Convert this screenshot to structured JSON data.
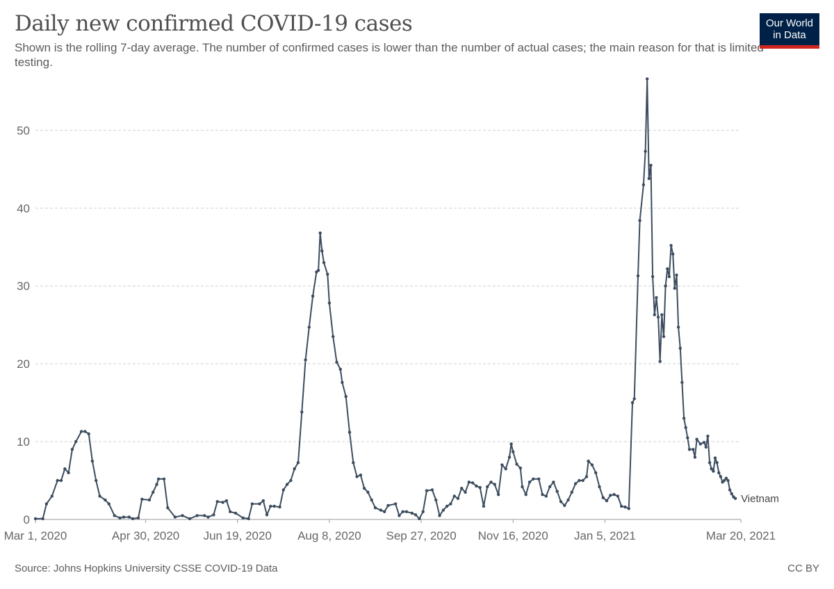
{
  "header": {
    "title": "Daily new confirmed COVID-19 cases",
    "subtitle": "Shown is the rolling 7-day average. The number of confirmed cases is lower than the number of actual cases; the main reason for that is limited testing."
  },
  "logo": {
    "line1": "Our World",
    "line2": "in Data"
  },
  "footer": {
    "source": "Source: Johns Hopkins University CSSE COVID-19 Data",
    "license": "CC BY"
  },
  "colors": {
    "series": "#3c4c5e",
    "grid": "#d0d0d0",
    "axis_text": "#666666",
    "logo_bg": "#002147",
    "logo_accent": "#ce261e"
  },
  "chart_data": {
    "type": "line",
    "title": "Daily new confirmed COVID-19 cases",
    "xlabel": "",
    "ylabel": "",
    "ylim": [
      0,
      57
    ],
    "yticks": [
      0,
      10,
      20,
      30,
      40,
      50
    ],
    "grid": true,
    "x_ticks": [
      {
        "day": 0,
        "label": "Mar 1, 2020"
      },
      {
        "day": 60,
        "label": "Apr 30, 2020"
      },
      {
        "day": 110,
        "label": "Jun 19, 2020"
      },
      {
        "day": 160,
        "label": "Aug 8, 2020"
      },
      {
        "day": 210,
        "label": "Sep 27, 2020"
      },
      {
        "day": 260,
        "label": "Nov 16, 2020"
      },
      {
        "day": 310,
        "label": "Jan 5, 2021"
      },
      {
        "day": 384,
        "label": "Mar 20, 2021"
      }
    ],
    "series": [
      {
        "name": "Vietnam",
        "points": [
          [
            0,
            0.1
          ],
          [
            4,
            0.1
          ],
          [
            6,
            2
          ],
          [
            9,
            3
          ],
          [
            12,
            5
          ],
          [
            14,
            5
          ],
          [
            16,
            6.5
          ],
          [
            18,
            6
          ],
          [
            20,
            9
          ],
          [
            22,
            10
          ],
          [
            25,
            11.3
          ],
          [
            27,
            11.3
          ],
          [
            29,
            11
          ],
          [
            31,
            7.5
          ],
          [
            33,
            5
          ],
          [
            35,
            3
          ],
          [
            38,
            2.5
          ],
          [
            40,
            2
          ],
          [
            43,
            0.5
          ],
          [
            46,
            0.2
          ],
          [
            48,
            0.3
          ],
          [
            51,
            0.3
          ],
          [
            53,
            0.1
          ],
          [
            56,
            0.2
          ],
          [
            58,
            2.6
          ],
          [
            62,
            2.5
          ],
          [
            64,
            3.5
          ],
          [
            66,
            4.5
          ],
          [
            67,
            5.2
          ],
          [
            70,
            5.2
          ],
          [
            72,
            1.5
          ],
          [
            76,
            0.3
          ],
          [
            80,
            0.5
          ],
          [
            84,
            0.1
          ],
          [
            88,
            0.5
          ],
          [
            92,
            0.5
          ],
          [
            94,
            0.3
          ],
          [
            97,
            0.6
          ],
          [
            99,
            2.3
          ],
          [
            102,
            2.2
          ],
          [
            104,
            2.4
          ],
          [
            106,
            1
          ],
          [
            109,
            0.8
          ],
          [
            113,
            0.2
          ],
          [
            116,
            0.1
          ],
          [
            118,
            2
          ],
          [
            122,
            2
          ],
          [
            124,
            2.4
          ],
          [
            126,
            0.6
          ],
          [
            128,
            1.7
          ],
          [
            130,
            1.7
          ],
          [
            133,
            1.6
          ],
          [
            135,
            3.8
          ],
          [
            137,
            4.5
          ],
          [
            139,
            5
          ],
          [
            141,
            6.5
          ],
          [
            143,
            7.3
          ],
          [
            145,
            13.8
          ],
          [
            147,
            20.5
          ],
          [
            149,
            24.7
          ],
          [
            151,
            28.7
          ],
          [
            153,
            31.8
          ],
          [
            154,
            32
          ],
          [
            155,
            36.8
          ],
          [
            156,
            34.5
          ],
          [
            157,
            33
          ],
          [
            159,
            31.5
          ],
          [
            160,
            27.8
          ],
          [
            162,
            23.5
          ],
          [
            164,
            20.2
          ],
          [
            166,
            19.3
          ],
          [
            167,
            17.6
          ],
          [
            169,
            15.8
          ],
          [
            171,
            11.2
          ],
          [
            173,
            7.3
          ],
          [
            175,
            5.5
          ],
          [
            177,
            5.7
          ],
          [
            179,
            4
          ],
          [
            181,
            3.5
          ],
          [
            183,
            2.5
          ],
          [
            185,
            1.5
          ],
          [
            188,
            1.2
          ],
          [
            190,
            1
          ],
          [
            192,
            1.8
          ],
          [
            196,
            2
          ],
          [
            198,
            0.5
          ],
          [
            200,
            1
          ],
          [
            202,
            1
          ],
          [
            205,
            0.8
          ],
          [
            207,
            0.6
          ],
          [
            209,
            0.1
          ],
          [
            211,
            1
          ],
          [
            213,
            3.7
          ],
          [
            216,
            3.8
          ],
          [
            218,
            2.5
          ],
          [
            220,
            0.5
          ],
          [
            222,
            1.2
          ],
          [
            224,
            1.7
          ],
          [
            226,
            2
          ],
          [
            228,
            3
          ],
          [
            230,
            2.7
          ],
          [
            232,
            4
          ],
          [
            234,
            3.5
          ],
          [
            236,
            4.8
          ],
          [
            238,
            4.7
          ],
          [
            240,
            4.3
          ],
          [
            242,
            4.1
          ],
          [
            244,
            1.7
          ],
          [
            246,
            4.2
          ],
          [
            248,
            4.8
          ],
          [
            250,
            4.5
          ],
          [
            252,
            3.2
          ],
          [
            254,
            7
          ],
          [
            256,
            6.5
          ],
          [
            258,
            8
          ],
          [
            259,
            9.7
          ],
          [
            260,
            8.7
          ],
          [
            262,
            7.1
          ],
          [
            264,
            6.6
          ],
          [
            265,
            4.2
          ],
          [
            267,
            3.2
          ],
          [
            269,
            4.8
          ],
          [
            271,
            5.2
          ],
          [
            274,
            5.2
          ],
          [
            276,
            3.2
          ],
          [
            278,
            3
          ],
          [
            280,
            4.2
          ],
          [
            282,
            4.8
          ],
          [
            284,
            3.6
          ],
          [
            286,
            2.3
          ],
          [
            288,
            1.8
          ],
          [
            290,
            2.5
          ],
          [
            292,
            3.5
          ],
          [
            294,
            4.6
          ],
          [
            296,
            5
          ],
          [
            298,
            5
          ],
          [
            300,
            5.5
          ],
          [
            301,
            7.5
          ],
          [
            303,
            7
          ],
          [
            305,
            6
          ],
          [
            307,
            4.2
          ],
          [
            309,
            2.8
          ],
          [
            311,
            2.4
          ],
          [
            313,
            3.1
          ],
          [
            315,
            3.2
          ],
          [
            317,
            3
          ],
          [
            319,
            1.7
          ],
          [
            321,
            1.6
          ],
          [
            323,
            1.4
          ],
          [
            325,
            15
          ],
          [
            326,
            15.5
          ],
          [
            328,
            31.3
          ],
          [
            329,
            38.4
          ],
          [
            331,
            43
          ],
          [
            332,
            47.3
          ],
          [
            333,
            56.6
          ],
          [
            334,
            43.8
          ],
          [
            335,
            45.5
          ],
          [
            336,
            31.2
          ],
          [
            337,
            26.3
          ],
          [
            338,
            28.5
          ],
          [
            339,
            26
          ],
          [
            340,
            20.3
          ],
          [
            341,
            26.3
          ],
          [
            342,
            23.5
          ],
          [
            343,
            30
          ],
          [
            344,
            32.2
          ],
          [
            345,
            31.2
          ],
          [
            346,
            35.2
          ],
          [
            347,
            34.1
          ],
          [
            348,
            29.7
          ],
          [
            349,
            31.4
          ],
          [
            350,
            24.7
          ],
          [
            351,
            22
          ],
          [
            352,
            17.6
          ],
          [
            353,
            13
          ],
          [
            354,
            11.8
          ],
          [
            355,
            10.5
          ],
          [
            356,
            9
          ],
          [
            358,
            9
          ],
          [
            359,
            8
          ],
          [
            360,
            10.3
          ],
          [
            362,
            9.7
          ],
          [
            364,
            9.9
          ],
          [
            365,
            9.3
          ],
          [
            366,
            10.7
          ],
          [
            367,
            7.3
          ],
          [
            368,
            6.5
          ],
          [
            369,
            6.2
          ],
          [
            370,
            7.9
          ],
          [
            371,
            7.3
          ],
          [
            372,
            6
          ],
          [
            373,
            5.5
          ],
          [
            374,
            4.8
          ],
          [
            375,
            5
          ],
          [
            376,
            5.3
          ],
          [
            377,
            5
          ],
          [
            378,
            3.8
          ],
          [
            379,
            3.3
          ],
          [
            380,
            2.9
          ],
          [
            381,
            2.7
          ]
        ]
      }
    ]
  }
}
